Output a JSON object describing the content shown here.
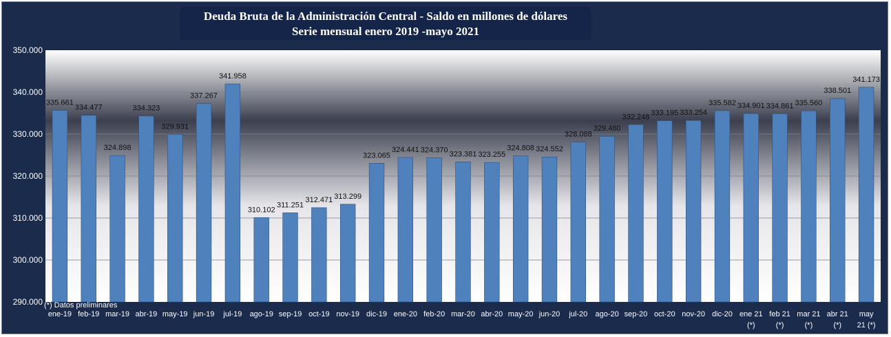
{
  "chart_data": {
    "type": "bar",
    "title": "Deuda Bruta de la Administración Central - Saldo en millones de dólares",
    "subtitle": "Serie mensual enero 2019 -mayo 2021",
    "note": "(*) Datos preliminares",
    "ylim": [
      290000,
      350000
    ],
    "yticks": [
      290000,
      300000,
      310000,
      320000,
      330000,
      340000,
      350000
    ],
    "ytick_labels": [
      "290.000",
      "300.000",
      "310.000",
      "320.000",
      "330.000",
      "340.000",
      "350.000"
    ],
    "categories": [
      [
        "ene-19"
      ],
      [
        "feb-19"
      ],
      [
        "mar-19"
      ],
      [
        "abr-19"
      ],
      [
        "may-19"
      ],
      [
        "jun-19"
      ],
      [
        "jul-19"
      ],
      [
        "ago-19"
      ],
      [
        "sep-19"
      ],
      [
        "oct-19"
      ],
      [
        "nov-19"
      ],
      [
        "dic-19"
      ],
      [
        "ene-20"
      ],
      [
        "feb-20"
      ],
      [
        "mar-20"
      ],
      [
        "abr-20"
      ],
      [
        "may-20"
      ],
      [
        "jun-20"
      ],
      [
        "jul-20"
      ],
      [
        "ago-20"
      ],
      [
        "sep-20"
      ],
      [
        "oct-20"
      ],
      [
        "nov-20"
      ],
      [
        "dic-20"
      ],
      [
        "ene 21",
        "(*)"
      ],
      [
        "feb 21",
        "(*)"
      ],
      [
        "mar 21",
        "(*)"
      ],
      [
        "abr 21",
        "(*)"
      ],
      [
        "may",
        "21 (*)"
      ]
    ],
    "values": [
      335661,
      334477,
      324898,
      334323,
      329931,
      337267,
      341958,
      310102,
      311251,
      312471,
      313299,
      323065,
      324441,
      324370,
      323381,
      323255,
      324808,
      324552,
      328088,
      329480,
      332248,
      333195,
      333254,
      335582,
      334901,
      334861,
      335560,
      338501,
      341173
    ],
    "value_labels": [
      "335.661",
      "334.477",
      "324.898",
      "334.323",
      "329.931",
      "337.267",
      "341.958",
      "310.102",
      "311.251",
      "312.471",
      "313.299",
      "323.065",
      "324.441",
      "324.370",
      "323.381",
      "323.255",
      "324.808",
      "324.552",
      "328.088",
      "329.480",
      "332.248",
      "333.195",
      "333.254",
      "335.582",
      "334.901",
      "334.861",
      "335.560",
      "338.501",
      "341.173"
    ],
    "colors": {
      "bar": "#4f81bd",
      "bar_border": "#2f4f7a",
      "background": "#1a2b4c"
    }
  }
}
